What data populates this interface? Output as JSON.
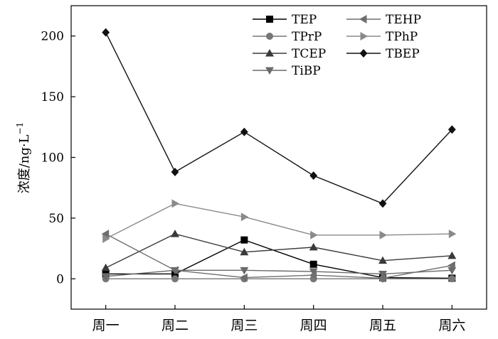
{
  "chart_data": {
    "type": "line",
    "title": "",
    "xlabel": "",
    "ylabel": "浓度/ng·L",
    "ylabel_superscript": "−1",
    "categories": [
      "周一",
      "周二",
      "周三",
      "周四",
      "周五",
      "周六"
    ],
    "ylim": [
      -25,
      225
    ],
    "yticks": [
      0,
      50,
      100,
      150,
      200
    ],
    "grid": false,
    "legend_position": "top-right",
    "series": [
      {
        "name": "TEP",
        "marker": "square",
        "color": "#000000",
        "values": [
          4,
          4,
          32,
          12,
          1,
          0.5
        ]
      },
      {
        "name": "TPrP",
        "marker": "circle",
        "color": "#777777",
        "values": [
          0,
          0,
          0,
          0,
          0,
          0
        ]
      },
      {
        "name": "TCEP",
        "marker": "triangle-up",
        "color": "#3a3a3a",
        "values": [
          9,
          37,
          22,
          26,
          15,
          19
        ]
      },
      {
        "name": "TiBP",
        "marker": "triangle-down",
        "color": "#6a6a6a",
        "values": [
          2,
          7,
          7,
          6,
          4,
          7
        ]
      },
      {
        "name": "TEHP",
        "marker": "triangle-left",
        "color": "#6e6e6e",
        "values": [
          37,
          7,
          1,
          3,
          0.5,
          11
        ]
      },
      {
        "name": "TPhP",
        "marker": "triangle-right",
        "color": "#8a8a8a",
        "values": [
          33,
          62,
          51,
          36,
          36,
          37
        ]
      },
      {
        "name": "TBEP",
        "marker": "diamond",
        "color": "#111111",
        "values": [
          203,
          88,
          121,
          85,
          62,
          123
        ]
      }
    ]
  }
}
